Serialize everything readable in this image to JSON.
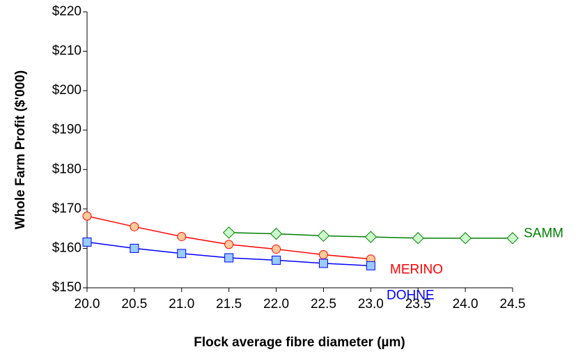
{
  "chart_data": {
    "type": "line",
    "x_label": "Flock average fibre diameter (µm)",
    "y_label": "Whole Farm Profit ($'000)",
    "xlim": [
      20,
      24.5
    ],
    "xticks": [
      {
        "value": 20,
        "label": "20.0"
      },
      {
        "value": 20.5,
        "label": "20.5"
      },
      {
        "value": 21,
        "label": "21.0"
      },
      {
        "value": 21.5,
        "label": "21.5"
      },
      {
        "value": 22,
        "label": "22.0"
      },
      {
        "value": 22.5,
        "label": "22.5"
      },
      {
        "value": 23,
        "label": "23.0"
      },
      {
        "value": 23.5,
        "label": "23.5"
      },
      {
        "value": 24,
        "label": "24.0"
      },
      {
        "value": 24.5,
        "label": "24.5"
      }
    ],
    "ylim": [
      150,
      220
    ],
    "yticks": [
      {
        "value": 150,
        "label": "$150"
      },
      {
        "value": 160,
        "label": "$160"
      },
      {
        "value": 170,
        "label": "$170"
      },
      {
        "value": 180,
        "label": "$180"
      },
      {
        "value": 190,
        "label": "$190"
      },
      {
        "value": 200,
        "label": "$200"
      },
      {
        "value": 210,
        "label": "$210"
      },
      {
        "value": 220,
        "label": "$220"
      }
    ],
    "series": [
      {
        "name": "MERINO",
        "color": "#ff0000",
        "marker": "circle",
        "marker_fill": "#ffcc99",
        "x": [
          20,
          20.5,
          21,
          21.5,
          22,
          22.5,
          23
        ],
        "values": [
          168.2,
          165.5,
          163,
          161,
          159.8,
          158.4,
          157.3
        ]
      },
      {
        "name": "DOHNE",
        "color": "#0000ff",
        "marker": "square",
        "marker_fill": "#99ccff",
        "x": [
          20,
          20.5,
          21,
          21.5,
          22,
          22.5,
          23
        ],
        "values": [
          161.6,
          160,
          158.7,
          157.6,
          157,
          156.2,
          155.6
        ]
      },
      {
        "name": "SAMM",
        "color": "#008000",
        "marker": "diamond",
        "marker_fill": "#ccffcc",
        "x": [
          21.5,
          22,
          22.5,
          23,
          23.5,
          24,
          24.5
        ],
        "values": [
          164,
          163.7,
          163.2,
          162.9,
          162.6,
          162.6,
          162.6
        ]
      }
    ]
  }
}
